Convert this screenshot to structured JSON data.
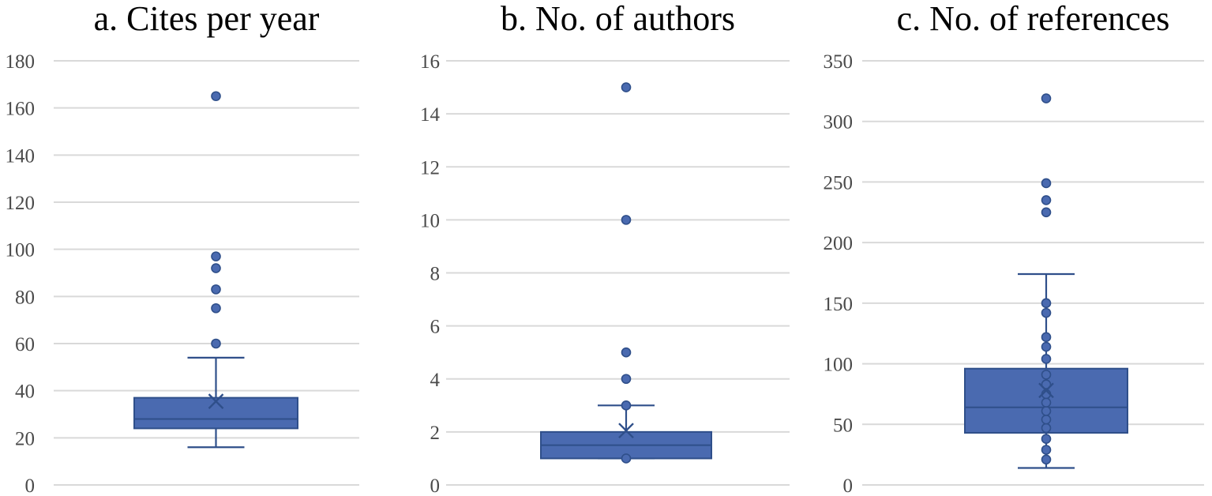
{
  "chart_data": [
    {
      "type": "box",
      "title": "a. Cites per year",
      "ylim": [
        0,
        180
      ],
      "yticks": [
        0,
        20,
        40,
        60,
        80,
        100,
        120,
        140,
        160,
        180
      ],
      "grid": true,
      "box": {
        "whisker_low": 16,
        "q1": 24,
        "median": 28,
        "q3": 37,
        "whisker_high": 54,
        "mean": 35.5
      },
      "outliers": [
        60,
        75,
        83,
        92,
        97,
        165
      ],
      "inner_points": [],
      "color": "#4a6ab0"
    },
    {
      "type": "box",
      "title": "b. No. of authors",
      "ylim": [
        0,
        16
      ],
      "yticks": [
        0,
        2,
        4,
        6,
        8,
        10,
        12,
        14,
        16
      ],
      "grid": true,
      "box": {
        "whisker_low": 1,
        "q1": 1,
        "median": 1.5,
        "q3": 2,
        "whisker_high": 3,
        "mean": 2.05
      },
      "outliers": [
        4,
        5,
        10,
        15
      ],
      "inner_points": [
        1,
        3
      ],
      "color": "#4a6ab0"
    },
    {
      "type": "box",
      "title": "c. No. of references",
      "ylim": [
        0,
        350
      ],
      "yticks": [
        0,
        50,
        100,
        150,
        200,
        250,
        300,
        350
      ],
      "grid": true,
      "box": {
        "whisker_low": 14,
        "q1": 43,
        "median": 64,
        "q3": 96,
        "whisker_high": 174,
        "mean": 78
      },
      "outliers": [
        225,
        235,
        249,
        319
      ],
      "inner_points": [
        21,
        29,
        38,
        47,
        54,
        61,
        68,
        75,
        83,
        91,
        104,
        114,
        122,
        142,
        150
      ],
      "color": "#4a6ab0"
    }
  ]
}
